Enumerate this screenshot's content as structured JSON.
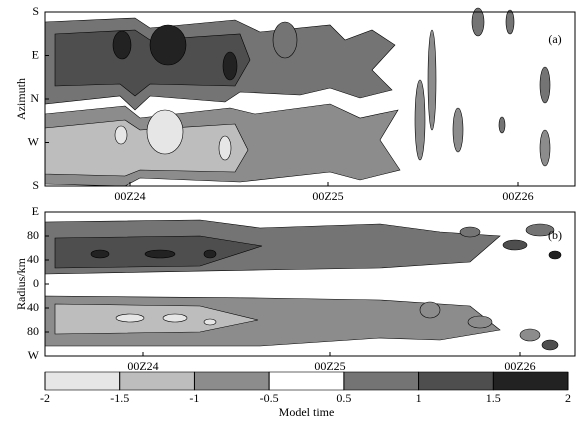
{
  "chart_data": [
    {
      "type": "contour",
      "panel_label": "(a)",
      "ylabel": "Azimuth",
      "y_categories": [
        "S",
        "E",
        "N",
        "W",
        "S"
      ],
      "x_categories": [
        "00Z24",
        "00Z25",
        "00Z26"
      ]
    },
    {
      "type": "contour",
      "panel_label": "(b)",
      "ylabel": "Radius/km",
      "y_categories": [
        "E",
        "80",
        "40",
        "0",
        "40",
        "80",
        "W"
      ],
      "x_categories": [
        "00Z24",
        "00Z25",
        "00Z26"
      ]
    },
    {
      "type": "colorbar",
      "xlabel": "Model time",
      "bins": [
        -2,
        -1.5,
        -1,
        -0.5,
        0.5,
        1,
        1.5,
        2
      ],
      "colors": [
        "#e6e6e6",
        "#bdbdbd",
        "#8c8c8c",
        "#ffffff",
        "#747474",
        "#4e4e4e",
        "#222222"
      ]
    }
  ]
}
